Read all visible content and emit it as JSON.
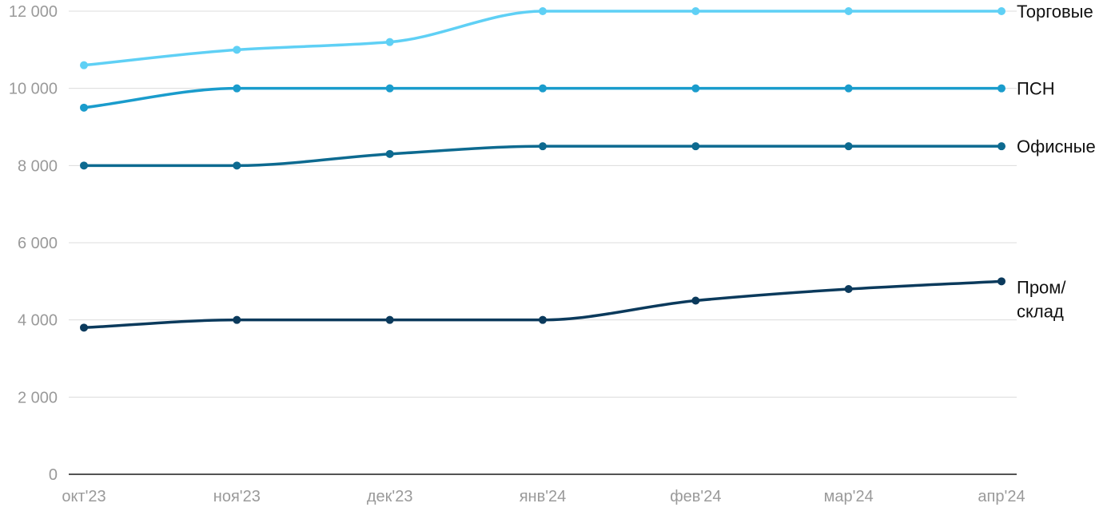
{
  "chart_data": {
    "type": "line",
    "title": "",
    "xlabel": "",
    "ylabel": "",
    "categories": [
      "окт'23",
      "ноя'23",
      "дек'23",
      "янв'24",
      "фев'24",
      "мар'24",
      "апр'24"
    ],
    "ylim": [
      0,
      12000
    ],
    "yticks": [
      0,
      2000,
      4000,
      6000,
      8000,
      10000,
      12000
    ],
    "ytick_labels": [
      "0",
      "2 000",
      "4 000",
      "6 000",
      "8 000",
      "10 000",
      "12 000"
    ],
    "grid": true,
    "legend": "end-of-line labels",
    "series": [
      {
        "name": "Торговые",
        "label_lines": [
          "Торговые"
        ],
        "color": "#5fd0f5",
        "values": [
          10600,
          11000,
          11200,
          12000,
          12000,
          12000,
          12000
        ]
      },
      {
        "name": "ПСН",
        "label_lines": [
          "ПСН"
        ],
        "color": "#1a9ccc",
        "values": [
          9500,
          10000,
          10000,
          10000,
          10000,
          10000,
          10000
        ]
      },
      {
        "name": "Офисные",
        "label_lines": [
          "Офисные"
        ],
        "color": "#0d6a90",
        "values": [
          8000,
          8000,
          8300,
          8500,
          8500,
          8500,
          8500
        ]
      },
      {
        "name": "Пром/склад",
        "label_lines": [
          "Пром/",
          "склад"
        ],
        "color": "#0b3a5c",
        "values": [
          3800,
          4000,
          4000,
          4000,
          4500,
          4800,
          5000
        ]
      }
    ]
  }
}
